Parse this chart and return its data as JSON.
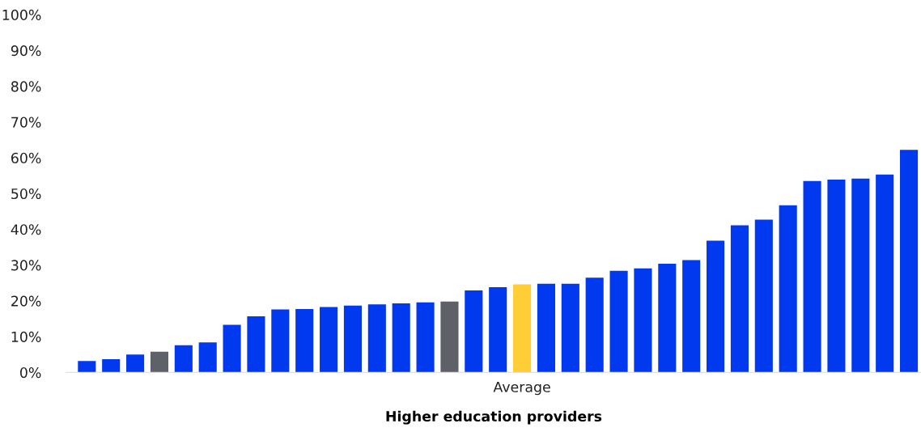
{
  "chart_data": {
    "type": "bar",
    "xlabel": "Higher education providers",
    "categories": [
      null,
      null,
      null,
      null,
      null,
      null,
      null,
      null,
      null,
      null,
      null,
      null,
      null,
      null,
      null,
      null,
      null,
      null,
      "Average",
      null,
      null,
      null,
      null,
      null,
      null,
      null,
      null,
      null,
      null,
      null,
      null,
      null,
      null,
      null,
      null
    ],
    "values": [
      3.2,
      3.7,
      5.0,
      5.8,
      7.6,
      8.4,
      13.3,
      15.7,
      17.6,
      17.7,
      18.3,
      18.7,
      19.0,
      19.3,
      19.6,
      19.8,
      22.9,
      23.8,
      24.6,
      24.8,
      24.8,
      26.5,
      28.4,
      29.1,
      30.4,
      31.4,
      36.8,
      41.1,
      42.7,
      46.7,
      53.5,
      53.9,
      54.2,
      55.3,
      62.2
    ],
    "colors": [
      "#0039ee",
      "#0039ee",
      "#0039ee",
      "#5f6168",
      "#0039ee",
      "#0039ee",
      "#0039ee",
      "#0039ee",
      "#0039ee",
      "#0039ee",
      "#0039ee",
      "#0039ee",
      "#0039ee",
      "#0039ee",
      "#0039ee",
      "#5f6168",
      "#0039ee",
      "#0039ee",
      "#ffcd36",
      "#0039ee",
      "#0039ee",
      "#0039ee",
      "#0039ee",
      "#0039ee",
      "#0039ee",
      "#0039ee",
      "#0039ee",
      "#0039ee",
      "#0039ee",
      "#0039ee",
      "#0039ee",
      "#0039ee",
      "#0039ee",
      "#0039ee",
      "#0039ee"
    ],
    "ylim": [
      0,
      100
    ],
    "yticks": [
      {
        "value": 0,
        "label": "0%"
      },
      {
        "value": 10,
        "label": "10%"
      },
      {
        "value": 20,
        "label": "20%"
      },
      {
        "value": 30,
        "label": "30%"
      },
      {
        "value": 40,
        "label": "40%"
      },
      {
        "value": 50,
        "label": "50%"
      },
      {
        "value": 60,
        "label": "60%"
      },
      {
        "value": 70,
        "label": "70%"
      },
      {
        "value": 80,
        "label": "80%"
      },
      {
        "value": 90,
        "label": "90%"
      },
      {
        "value": 100,
        "label": "100%"
      }
    ],
    "grid": false,
    "legend": false
  }
}
